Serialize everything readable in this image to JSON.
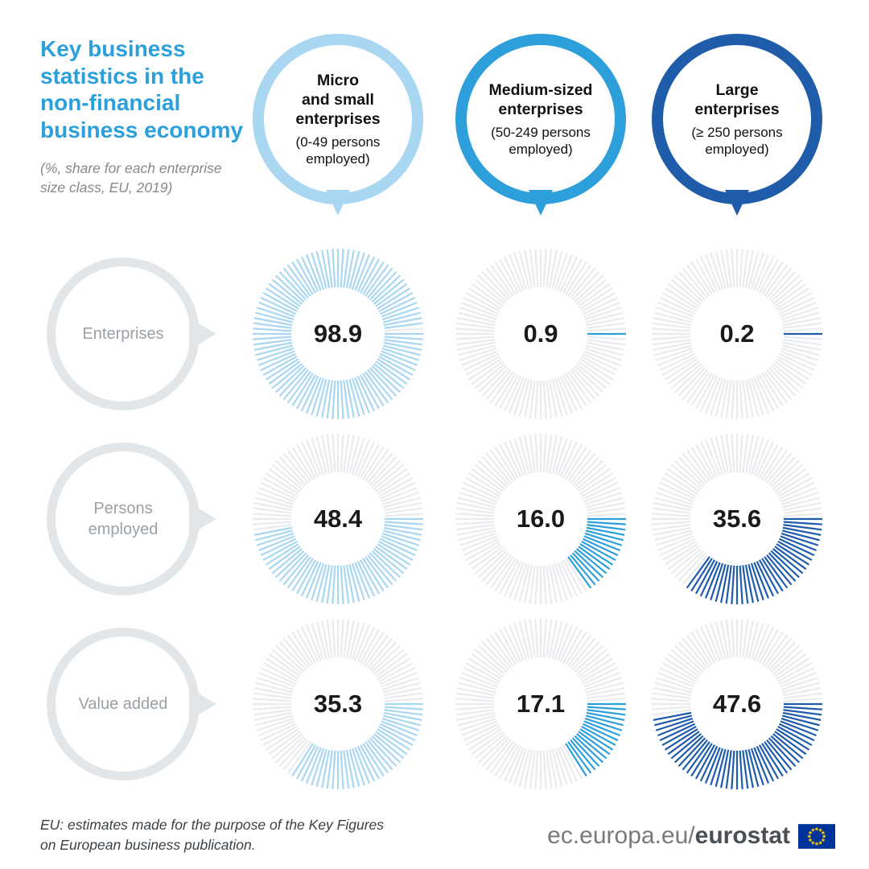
{
  "page": {
    "title": "Key business statistics in the non-financial business economy",
    "title_lines": "Key business\nstatistics in the\nnon-financial\nbusiness economy",
    "subtitle_lines": "(%, share for each enterprise\nsize class, EU, 2019)"
  },
  "palette": {
    "title_blue": "#2ba0da",
    "light_blue": "#a9d7f2",
    "medium_blue": "#2d9fda",
    "dark_blue": "#1f5ca9",
    "inactive_gray": "#e9ebee",
    "circle_gray": "#e3e6e9",
    "label_gray": "#9aa0a5",
    "eu_flag_blue": "#003399",
    "eu_star_yellow": "#ffcc00"
  },
  "columns": [
    {
      "name": "Micro and small enterprises",
      "title_lines": "Micro\nand small\nenterprises",
      "subtitle_lines": "(0-49 persons\nemployed)",
      "color": "#a9d7f2"
    },
    {
      "name": "Medium-sized enterprises",
      "title_lines": "Medium-sized\nenterprises",
      "subtitle_lines": "(50-249 persons\nemployed)",
      "color": "#2d9fda"
    },
    {
      "name": "Large enterprises",
      "title_lines": "Large\nenterprises",
      "subtitle_lines": "(≥ 250 persons\nemployed)",
      "color": "#1f5ca9"
    }
  ],
  "rows": [
    {
      "label": "Enterprises"
    },
    {
      "label": "Persons\nemployed"
    },
    {
      "label": "Value added"
    }
  ],
  "chart_data": {
    "type": "radial-tick-donut",
    "unit": "%",
    "title": "Key business statistics in the non-financial business economy",
    "subtitle": "(%, share for each enterprise size class, EU, 2019)",
    "categories": [
      "Micro and small enterprises (0-49 persons employed)",
      "Medium-sized enterprises (50-249 persons employed)",
      "Large enterprises (≥ 250 persons employed)"
    ],
    "series": [
      {
        "name": "Enterprises",
        "values": [
          98.9,
          0.9,
          0.2
        ],
        "labels": [
          "98.9",
          "0.9",
          "0.2"
        ]
      },
      {
        "name": "Persons employed",
        "values": [
          48.4,
          16.0,
          35.6
        ],
        "labels": [
          "48.4",
          "16.0",
          "35.6"
        ]
      },
      {
        "name": "Value added",
        "values": [
          35.3,
          17.1,
          47.6
        ],
        "labels": [
          "35.3",
          "17.1",
          "47.6"
        ]
      }
    ],
    "colors": [
      "#a9d7f2",
      "#2d9fda",
      "#1f5ca9"
    ],
    "inactive_color": "#e9ebee",
    "ticks_per_chart": 100,
    "start_angle": "3-o'clock",
    "direction": "clockwise"
  },
  "footer": {
    "note": "EU: estimates made for the purpose of the Key Figures\non European business publication.",
    "brand_prefix": "ec.europa.eu/",
    "brand_bold": "eurostat"
  }
}
